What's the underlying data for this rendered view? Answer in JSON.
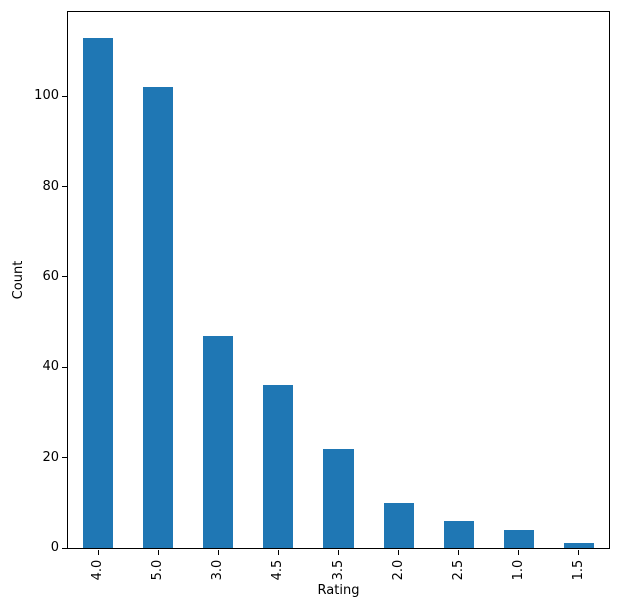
{
  "chart_data": {
    "type": "bar",
    "categories": [
      "4.0",
      "5.0",
      "3.0",
      "4.5",
      "3.5",
      "2.0",
      "2.5",
      "1.0",
      "1.5"
    ],
    "values": [
      113,
      102,
      47,
      36,
      22,
      10,
      6,
      4,
      1
    ],
    "title": "",
    "xlabel": "Rating",
    "ylabel": "Count",
    "ylim": [
      0,
      118.65
    ],
    "yticks": [
      0,
      20,
      40,
      60,
      80,
      100
    ],
    "bar_color": "#1f77b4",
    "bar_width_fraction": 0.5,
    "grid": false,
    "legend": false,
    "background_color": "#ffffff",
    "spine_color": "#000000"
  }
}
